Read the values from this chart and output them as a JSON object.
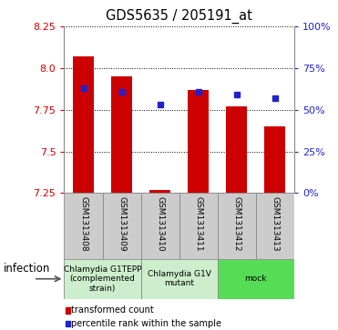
{
  "title": "GDS5635 / 205191_at",
  "samples": [
    "GSM1313408",
    "GSM1313409",
    "GSM1313410",
    "GSM1313411",
    "GSM1313412",
    "GSM1313413"
  ],
  "red_values": [
    8.07,
    7.95,
    7.27,
    7.87,
    7.77,
    7.65
  ],
  "blue_values": [
    7.88,
    7.86,
    7.78,
    7.86,
    7.84,
    7.82
  ],
  "ylim": [
    7.25,
    8.25
  ],
  "yticks_left": [
    7.25,
    7.5,
    7.75,
    8.0,
    8.25
  ],
  "yticks_right": [
    0,
    25,
    50,
    75,
    100
  ],
  "bar_color": "#cc0000",
  "blue_color": "#2222cc",
  "bar_base": 7.25,
  "groups": [
    {
      "label": "Chlamydia G1TEPP\n(complemented\nstrain)",
      "start": 0,
      "end": 2,
      "color": "#cceecc"
    },
    {
      "label": "Chlamydia G1V\nmutant",
      "start": 2,
      "end": 4,
      "color": "#cceecc"
    },
    {
      "label": "mock",
      "start": 4,
      "end": 6,
      "color": "#55dd55"
    }
  ],
  "sample_box_color": "#cccccc",
  "group_label_text": "infection",
  "legend_red": "transformed count",
  "legend_blue": "percentile rank within the sample",
  "bar_width": 0.55
}
